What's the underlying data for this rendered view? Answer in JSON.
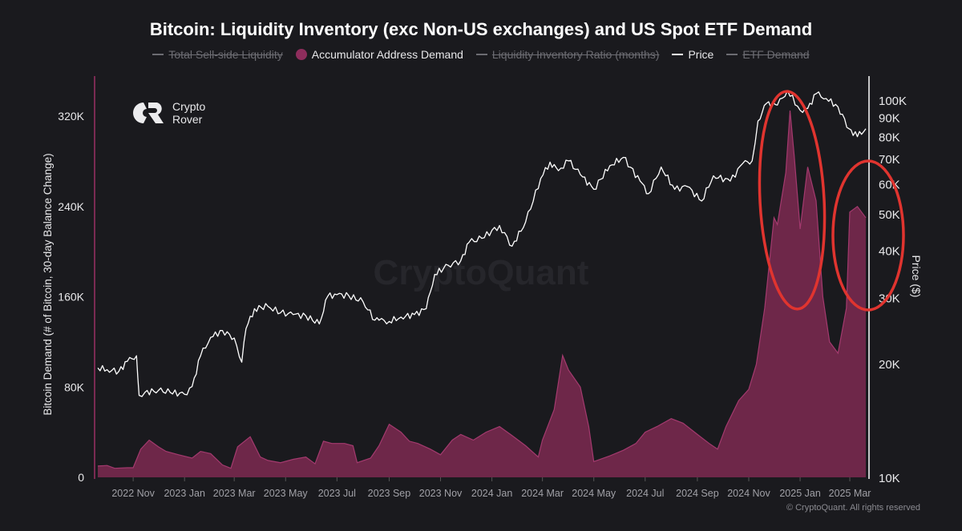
{
  "title": "Bitcoin: Liquidity Inventory (exc Non-US exchanges) and US Spot ETF Demand",
  "legend": [
    {
      "label": "Total Sell-side Liquidity",
      "state": "off",
      "marker": "line"
    },
    {
      "label": "Accumulator Address Demand",
      "state": "on",
      "marker": "dot",
      "color": "#8e2d5c"
    },
    {
      "label": "Liquidity Inventory Ratio (months)",
      "state": "off",
      "marker": "line"
    },
    {
      "label": "Price",
      "state": "on",
      "marker": "line",
      "color": "#ffffff"
    },
    {
      "label": "ETF Demand",
      "state": "off",
      "marker": "line"
    }
  ],
  "logo": {
    "line1": "Crypto",
    "line2": "Rover"
  },
  "watermark": "CryptoQuant",
  "copyright": "© CryptoQuant. All rights reserved",
  "colors": {
    "background": "#1a1a1e",
    "demand_fill": "#6e2749",
    "demand_line": "#a33a6e",
    "price": "#ffffff",
    "left_axis": "#7a2a52",
    "annotation": "#e0342f"
  },
  "chart_data": {
    "type": "area",
    "title": "Bitcoin: Liquidity Inventory (exc Non-US exchanges) and US Spot ETF Demand",
    "xlabel": "",
    "ylabel": "Bitcoin Demand (# of Bitcoin, 30-day Balance Change)",
    "y2label": "Price ($)",
    "x_tick_labels": [
      "2022 Nov",
      "2023 Jan",
      "2023 Mar",
      "2023 May",
      "2023 Jul",
      "2023 Sep",
      "2023 Nov",
      "2024 Jan",
      "2024 Mar",
      "2024 May",
      "2024 Jul",
      "2024 Sep",
      "2024 Nov",
      "2025 Jan",
      "2025 Mar"
    ],
    "y_ticks": [
      0,
      80000,
      160000,
      240000,
      320000
    ],
    "y_tick_labels": [
      "0",
      "80K",
      "160K",
      "240K",
      "320K"
    ],
    "ylim": [
      0,
      340000
    ],
    "y2_scale": "log",
    "y2_ticks": [
      10000,
      20000,
      30000,
      40000,
      50000,
      60000,
      70000,
      80000,
      90000,
      100000
    ],
    "y2_tick_labels": [
      "10K",
      "20K",
      "30K",
      "40K",
      "50K",
      "60K",
      "70K",
      "80K",
      "90K",
      "100K"
    ],
    "y2lim": [
      10000,
      110000
    ],
    "grid": false,
    "legend_position": "top-center",
    "series": [
      {
        "name": "Accumulator Address Demand",
        "axis": "left",
        "style": "area",
        "x": [
          "2022-09-20",
          "2022-10-01",
          "2022-10-10",
          "2022-10-25",
          "2022-11-01",
          "2022-11-10",
          "2022-11-20",
          "2022-12-01",
          "2022-12-10",
          "2022-12-25",
          "2023-01-10",
          "2023-01-20",
          "2023-02-01",
          "2023-02-15",
          "2023-02-25",
          "2023-03-05",
          "2023-03-20",
          "2023-04-01",
          "2023-04-10",
          "2023-04-25",
          "2023-05-10",
          "2023-05-25",
          "2023-06-05",
          "2023-06-15",
          "2023-06-25",
          "2023-07-10",
          "2023-07-20",
          "2023-07-25",
          "2023-08-10",
          "2023-08-20",
          "2023-09-01",
          "2023-09-15",
          "2023-09-25",
          "2023-10-05",
          "2023-10-20",
          "2023-11-01",
          "2023-11-15",
          "2023-11-25",
          "2023-12-10",
          "2023-12-25",
          "2024-01-10",
          "2024-01-25",
          "2024-02-10",
          "2024-02-25",
          "2024-03-01",
          "2024-03-15",
          "2024-03-25",
          "2024-04-01",
          "2024-04-15",
          "2024-04-25",
          "2024-05-01",
          "2024-05-20",
          "2024-06-05",
          "2024-06-20",
          "2024-07-01",
          "2024-07-15",
          "2024-08-01",
          "2024-08-15",
          "2024-09-01",
          "2024-09-15",
          "2024-09-25",
          "2024-10-05",
          "2024-10-20",
          "2024-11-01",
          "2024-11-10",
          "2024-11-20",
          "2024-12-01",
          "2024-12-05",
          "2024-12-15",
          "2024-12-20",
          "2024-12-25",
          "2025-01-01",
          "2025-01-10",
          "2025-01-20",
          "2025-01-28",
          "2025-02-05",
          "2025-02-15",
          "2025-02-25",
          "2025-03-01",
          "2025-03-10",
          "2025-03-20"
        ],
        "values": [
          10000,
          10500,
          8000,
          8500,
          8500,
          25000,
          33000,
          27000,
          23000,
          20000,
          17000,
          23000,
          21000,
          11000,
          8000,
          27000,
          36000,
          18000,
          15000,
          13000,
          16000,
          18000,
          12000,
          32000,
          30000,
          30000,
          28000,
          13000,
          17000,
          28000,
          47000,
          40000,
          32000,
          30000,
          25000,
          20000,
          33000,
          38000,
          33000,
          40000,
          45000,
          37000,
          28000,
          18000,
          33000,
          60000,
          108000,
          95000,
          80000,
          45000,
          14000,
          19000,
          24000,
          30000,
          40000,
          45000,
          52000,
          48000,
          38000,
          30000,
          25000,
          45000,
          68000,
          78000,
          100000,
          150000,
          230000,
          224000,
          270000,
          325000,
          285000,
          220000,
          275000,
          245000,
          160000,
          120000,
          110000,
          150000,
          235000,
          240000,
          230000
        ]
      },
      {
        "name": "Price",
        "axis": "right",
        "style": "line",
        "x": [
          "2022-09-20",
          "2022-10-01",
          "2022-10-15",
          "2022-10-25",
          "2022-11-05",
          "2022-11-08",
          "2022-11-15",
          "2022-12-01",
          "2022-12-15",
          "2023-01-01",
          "2023-01-10",
          "2023-01-20",
          "2023-02-01",
          "2023-02-15",
          "2023-03-01",
          "2023-03-10",
          "2023-03-15",
          "2023-03-25",
          "2023-04-10",
          "2023-04-25",
          "2023-05-10",
          "2023-05-25",
          "2023-06-10",
          "2023-06-20",
          "2023-07-01",
          "2023-07-15",
          "2023-08-01",
          "2023-08-15",
          "2023-08-20",
          "2023-09-01",
          "2023-09-15",
          "2023-10-01",
          "2023-10-15",
          "2023-10-25",
          "2023-11-10",
          "2023-11-25",
          "2023-12-05",
          "2023-12-20",
          "2024-01-10",
          "2024-01-25",
          "2024-02-10",
          "2024-02-28",
          "2024-03-10",
          "2024-03-20",
          "2024-04-01",
          "2024-04-15",
          "2024-05-01",
          "2024-05-20",
          "2024-06-05",
          "2024-06-25",
          "2024-07-05",
          "2024-07-20",
          "2024-08-05",
          "2024-08-20",
          "2024-09-06",
          "2024-09-20",
          "2024-10-10",
          "2024-10-25",
          "2024-11-05",
          "2024-11-12",
          "2024-11-22",
          "2024-12-05",
          "2024-12-17",
          "2025-01-01",
          "2025-01-10",
          "2025-01-20",
          "2025-02-01",
          "2025-02-15",
          "2025-02-28",
          "2025-03-10",
          "2025-03-20"
        ],
        "values": [
          19500,
          19300,
          19100,
          20300,
          21000,
          16500,
          16800,
          17000,
          16800,
          16600,
          17400,
          21000,
          23500,
          24500,
          23400,
          20200,
          24800,
          28000,
          28400,
          27300,
          27000,
          26800,
          25500,
          30200,
          30500,
          30300,
          29200,
          26100,
          26100,
          25900,
          26600,
          27000,
          28000,
          34500,
          36500,
          37500,
          42000,
          43000,
          46500,
          41000,
          47500,
          62000,
          68500,
          65000,
          69000,
          63500,
          58000,
          67000,
          70500,
          61000,
          56500,
          66500,
          58000,
          59000,
          54000,
          63000,
          61000,
          68000,
          69000,
          88000,
          98000,
          97000,
          106000,
          94000,
          95000,
          104000,
          101000,
          96000,
          84000,
          80000,
          84000
        ]
      }
    ]
  },
  "annotations": [
    {
      "type": "ellipse",
      "label": "highlight-dec-2024-peak"
    },
    {
      "type": "ellipse",
      "label": "highlight-mar-2025-peak"
    }
  ]
}
